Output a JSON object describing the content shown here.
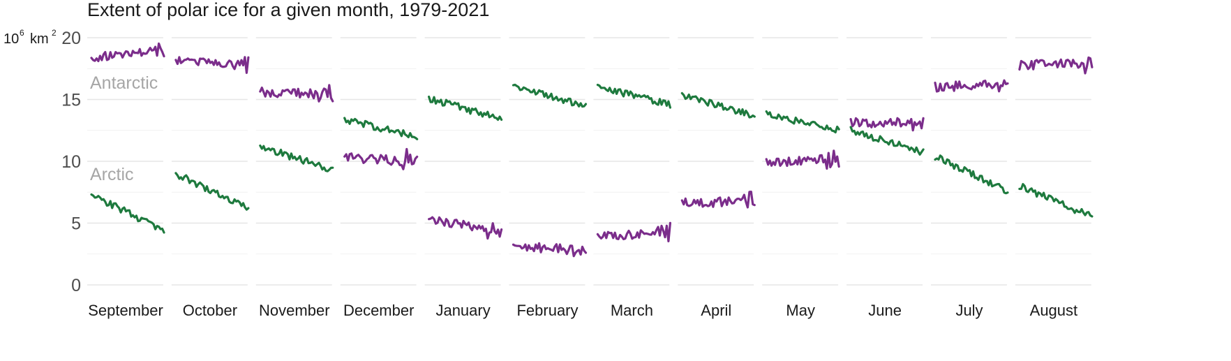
{
  "chart_data": {
    "type": "line",
    "title": "Extent of polar ice for a given month, 1979-2021",
    "ylabel": {
      "base": "10",
      "base_exp": "6",
      "unit": "km",
      "unit_exp": "2"
    },
    "ylim": [
      0,
      20
    ],
    "yticks": [
      0,
      5,
      10,
      15,
      20
    ],
    "xlim": [
      1979,
      2021
    ],
    "grid": true,
    "panels": [
      "September",
      "October",
      "November",
      "December",
      "January",
      "February",
      "March",
      "April",
      "May",
      "June",
      "July",
      "August"
    ],
    "colors": {
      "Antarctic": "#7b2d8b",
      "Arctic": "#1e7a3e"
    },
    "series": [
      {
        "name": "Antarctic",
        "label": "Antarctic",
        "start": [
          18.4,
          18.2,
          15.6,
          10.3,
          5.2,
          3.1,
          3.9,
          6.6,
          9.9,
          13.1,
          16.0,
          17.8
        ],
        "end": [
          18.9,
          17.9,
          15.4,
          10.0,
          4.4,
          2.8,
          4.3,
          6.8,
          10.2,
          13.2,
          16.3,
          17.9
        ]
      },
      {
        "name": "Arctic",
        "label": "Arctic",
        "start": [
          7.3,
          9.0,
          11.2,
          13.4,
          15.1,
          16.0,
          16.0,
          15.3,
          13.8,
          12.5,
          10.4,
          8.0
        ],
        "end": [
          4.4,
          6.2,
          9.3,
          12.0,
          13.4,
          14.5,
          14.6,
          13.7,
          12.5,
          10.7,
          7.6,
          5.5
        ]
      }
    ]
  }
}
